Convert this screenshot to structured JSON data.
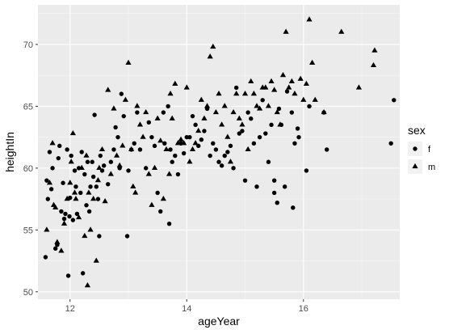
{
  "colors": {
    "panel_background": "#ebebeb",
    "major_grid": "#ffffff",
    "minor_grid": "#f5f5f5",
    "point": "#000000",
    "tick": "#333333"
  },
  "chart_data": {
    "type": "scatter",
    "xlabel": "ageYear",
    "ylabel": "heightIn",
    "xlim": [
      11.45,
      17.65
    ],
    "ylim": [
      49.4,
      73.2
    ],
    "x_ticks": [
      12,
      14,
      16
    ],
    "y_ticks": [
      50,
      55,
      60,
      65,
      70
    ],
    "x_tick_labels": [
      "12",
      "14",
      "16"
    ],
    "y_tick_labels": [
      "50",
      "55",
      "60",
      "65",
      "70"
    ],
    "grid": true,
    "legend": {
      "title": "sex",
      "position": "right",
      "entries": [
        {
          "label": "f",
          "shape": "circle"
        },
        {
          "label": "m",
          "shape": "triangle"
        }
      ]
    },
    "series": [
      {
        "name": "f",
        "shape": "circle",
        "points": [
          [
            11.58,
            52.8
          ],
          [
            11.62,
            57.5
          ],
          [
            11.6,
            59.0
          ],
          [
            11.65,
            61.3
          ],
          [
            11.68,
            58.3
          ],
          [
            11.7,
            60.0
          ],
          [
            11.75,
            53.5
          ],
          [
            11.78,
            53.8
          ],
          [
            11.8,
            60.8
          ],
          [
            11.82,
            61.8
          ],
          [
            11.85,
            56.5
          ],
          [
            11.88,
            58.8
          ],
          [
            11.9,
            55.9
          ],
          [
            11.92,
            56.3
          ],
          [
            11.95,
            61.5
          ],
          [
            11.97,
            51.3
          ],
          [
            11.99,
            56.1
          ],
          [
            12.0,
            57.6
          ],
          [
            12.02,
            61.0
          ],
          [
            12.05,
            55.8
          ],
          [
            12.08,
            59.8
          ],
          [
            12.1,
            58.5
          ],
          [
            12.12,
            56.3
          ],
          [
            12.15,
            60.0
          ],
          [
            12.18,
            58.0
          ],
          [
            12.2,
            61.3
          ],
          [
            12.22,
            51.5
          ],
          [
            12.25,
            59.5
          ],
          [
            12.28,
            57.0
          ],
          [
            12.3,
            60.5
          ],
          [
            12.33,
            56.5
          ],
          [
            12.35,
            58.5
          ],
          [
            12.38,
            60.5
          ],
          [
            12.4,
            59.3
          ],
          [
            12.42,
            64.3
          ],
          [
            12.45,
            58.5
          ],
          [
            12.48,
            57.5
          ],
          [
            12.5,
            54.5
          ],
          [
            12.52,
            61.0
          ],
          [
            12.55,
            59.8
          ],
          [
            12.58,
            60.2
          ],
          [
            12.65,
            58.7
          ],
          [
            12.7,
            60.5
          ],
          [
            12.75,
            61.5
          ],
          [
            12.78,
            63.3
          ],
          [
            12.82,
            62.5
          ],
          [
            12.85,
            60.0
          ],
          [
            12.88,
            66.0
          ],
          [
            12.92,
            64.2
          ],
          [
            12.98,
            54.5
          ],
          [
            13.0,
            59.8
          ],
          [
            13.05,
            61.5
          ],
          [
            13.1,
            62.0
          ],
          [
            13.15,
            64.5
          ],
          [
            13.2,
            61.5
          ],
          [
            13.3,
            60.0
          ],
          [
            13.35,
            63.7
          ],
          [
            13.4,
            62.5
          ],
          [
            13.45,
            61.8
          ],
          [
            13.5,
            58.0
          ],
          [
            13.55,
            56.5
          ],
          [
            13.6,
            64.5
          ],
          [
            13.62,
            62.0
          ],
          [
            13.68,
            65.0
          ],
          [
            13.7,
            55.5
          ],
          [
            13.72,
            61.5
          ],
          [
            13.75,
            60.5
          ],
          [
            13.8,
            61.0
          ],
          [
            13.85,
            59.5
          ],
          [
            13.9,
            62.0
          ],
          [
            13.95,
            61.2
          ],
          [
            14.0,
            62.5
          ],
          [
            14.05,
            62.5
          ],
          [
            14.1,
            64.2
          ],
          [
            14.15,
            63.5
          ],
          [
            14.2,
            61.8
          ],
          [
            14.25,
            62.3
          ],
          [
            14.3,
            63.0
          ],
          [
            14.35,
            64.8
          ],
          [
            14.4,
            61.0
          ],
          [
            14.45,
            62.0
          ],
          [
            14.5,
            61.5
          ],
          [
            14.55,
            60.5
          ],
          [
            14.6,
            60.2
          ],
          [
            14.65,
            61.0
          ],
          [
            14.7,
            61.3
          ],
          [
            14.75,
            61.8
          ],
          [
            14.8,
            60.0
          ],
          [
            14.85,
            66.5
          ],
          [
            14.9,
            62.8
          ],
          [
            14.95,
            63.0
          ],
          [
            15.0,
            59.0
          ],
          [
            15.05,
            64.5
          ],
          [
            15.1,
            64.0
          ],
          [
            15.15,
            62.0
          ],
          [
            15.2,
            58.5
          ],
          [
            15.25,
            62.5
          ],
          [
            15.3,
            65.5
          ],
          [
            15.35,
            62.8
          ],
          [
            15.4,
            60.5
          ],
          [
            15.45,
            63.5
          ],
          [
            15.5,
            59.0
          ],
          [
            15.5,
            58.0
          ],
          [
            15.55,
            57.2
          ],
          [
            15.58,
            64.8
          ],
          [
            15.62,
            63.5
          ],
          [
            15.68,
            58.5
          ],
          [
            15.72,
            66.2
          ],
          [
            15.8,
            64.5
          ],
          [
            15.82,
            56.8
          ],
          [
            15.85,
            62.0
          ],
          [
            15.9,
            63.2
          ],
          [
            15.92,
            62.5
          ],
          [
            16.05,
            59.8
          ],
          [
            16.1,
            65.0
          ],
          [
            16.35,
            64.5
          ],
          [
            16.4,
            61.5
          ],
          [
            17.5,
            62.0
          ],
          [
            17.55,
            65.5
          ]
        ]
      },
      {
        "name": "m",
        "shape": "triangle",
        "points": [
          [
            11.6,
            55.0
          ],
          [
            11.65,
            58.8
          ],
          [
            11.7,
            62.0
          ],
          [
            11.72,
            57.0
          ],
          [
            11.75,
            56.8
          ],
          [
            11.78,
            54.0
          ],
          [
            11.85,
            53.3
          ],
          [
            11.9,
            55.5
          ],
          [
            11.95,
            57.5
          ],
          [
            12.0,
            58.8
          ],
          [
            12.02,
            60.5
          ],
          [
            12.05,
            62.8
          ],
          [
            12.08,
            58.0
          ],
          [
            12.1,
            57.5
          ],
          [
            12.15,
            56.0
          ],
          [
            12.2,
            60.0
          ],
          [
            12.25,
            54.5
          ],
          [
            12.28,
            61.0
          ],
          [
            12.3,
            50.5
          ],
          [
            12.32,
            58.0
          ],
          [
            12.35,
            55.0
          ],
          [
            12.4,
            57.5
          ],
          [
            12.45,
            52.5
          ],
          [
            12.48,
            59.0
          ],
          [
            12.5,
            60.0
          ],
          [
            12.55,
            61.5
          ],
          [
            12.6,
            57.3
          ],
          [
            12.65,
            66.3
          ],
          [
            12.7,
            59.5
          ],
          [
            12.75,
            64.8
          ],
          [
            12.8,
            61.0
          ],
          [
            12.85,
            60.2
          ],
          [
            12.9,
            61.8
          ],
          [
            12.95,
            65.5
          ],
          [
            13.0,
            68.5
          ],
          [
            13.05,
            61.5
          ],
          [
            13.08,
            58.5
          ],
          [
            13.12,
            58.0
          ],
          [
            13.15,
            65.0
          ],
          [
            13.2,
            63.5
          ],
          [
            13.25,
            62.5
          ],
          [
            13.3,
            64.5
          ],
          [
            13.35,
            59.5
          ],
          [
            13.4,
            57.0
          ],
          [
            13.45,
            60.0
          ],
          [
            13.5,
            64.0
          ],
          [
            13.55,
            62.2
          ],
          [
            13.6,
            57.5
          ],
          [
            13.65,
            61.5
          ],
          [
            13.7,
            59.5
          ],
          [
            13.72,
            66.0
          ],
          [
            13.75,
            64.0
          ],
          [
            13.8,
            66.8
          ],
          [
            13.85,
            62.0
          ],
          [
            13.9,
            62.3
          ],
          [
            13.95,
            62.0
          ],
          [
            14.0,
            66.5
          ],
          [
            14.05,
            60.5
          ],
          [
            14.1,
            61.5
          ],
          [
            14.15,
            62.0
          ],
          [
            14.2,
            63.0
          ],
          [
            14.25,
            65.5
          ],
          [
            14.3,
            64.0
          ],
          [
            14.35,
            65.0
          ],
          [
            14.4,
            69.0
          ],
          [
            14.45,
            69.8
          ],
          [
            14.5,
            64.5
          ],
          [
            14.55,
            66.0
          ],
          [
            14.6,
            63.5
          ],
          [
            14.65,
            65.0
          ],
          [
            14.7,
            62.5
          ],
          [
            14.75,
            60.5
          ],
          [
            14.8,
            64.5
          ],
          [
            14.85,
            66.0
          ],
          [
            14.9,
            64.0
          ],
          [
            14.95,
            63.5
          ],
          [
            15.0,
            66.0
          ],
          [
            15.05,
            61.5
          ],
          [
            15.1,
            67.0
          ],
          [
            15.15,
            66.0
          ],
          [
            15.2,
            65.0
          ],
          [
            15.25,
            64.8
          ],
          [
            15.3,
            66.5
          ],
          [
            15.35,
            66.5
          ],
          [
            15.4,
            65.0
          ],
          [
            15.45,
            67.0
          ],
          [
            15.5,
            66.3
          ],
          [
            15.55,
            64.5
          ],
          [
            15.6,
            63.5
          ],
          [
            15.65,
            67.5
          ],
          [
            15.7,
            71.0
          ],
          [
            15.75,
            66.5
          ],
          [
            15.8,
            67.0
          ],
          [
            15.85,
            66.0
          ],
          [
            15.95,
            67.2
          ],
          [
            16.0,
            65.5
          ],
          [
            16.05,
            66.8
          ],
          [
            16.1,
            72.0
          ],
          [
            16.15,
            68.5
          ],
          [
            16.2,
            65.5
          ],
          [
            16.35,
            64.5
          ],
          [
            16.65,
            71.0
          ],
          [
            16.95,
            66.5
          ],
          [
            17.2,
            68.3
          ],
          [
            17.22,
            69.5
          ]
        ]
      }
    ]
  }
}
